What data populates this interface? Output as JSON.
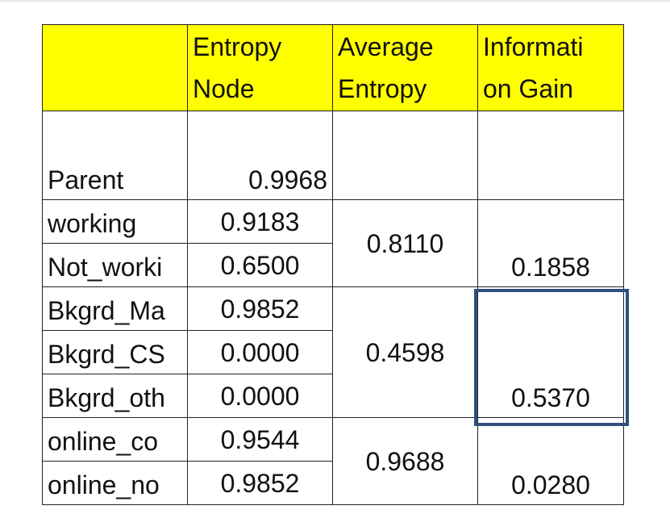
{
  "table": {
    "header": [
      [],
      [
        "Entropy",
        "Node"
      ],
      [
        "Average",
        "Entropy"
      ],
      [
        "Informati",
        "on Gain"
      ]
    ],
    "rows": [
      {
        "label": "Parent",
        "entropy": "0.9968"
      },
      {
        "label": "working",
        "entropy": "0.9183"
      },
      {
        "label": "Not_worki",
        "entropy": "0.6500"
      },
      {
        "label": "Bkgrd_Ma",
        "entropy": "0.9852"
      },
      {
        "label": "Bkgrd_CS",
        "entropy": "0.0000"
      },
      {
        "label": "Bkgrd_oth",
        "entropy": "0.0000"
      },
      {
        "label": "online_co",
        "entropy": "0.9544"
      },
      {
        "label": "online_no",
        "entropy": "0.9852"
      }
    ],
    "groups": [
      {
        "average": "0.8110",
        "gain": "0.1858"
      },
      {
        "average": "0.4598",
        "gain": "0.5370"
      },
      {
        "average": "0.9688",
        "gain": "0.0280"
      }
    ]
  }
}
